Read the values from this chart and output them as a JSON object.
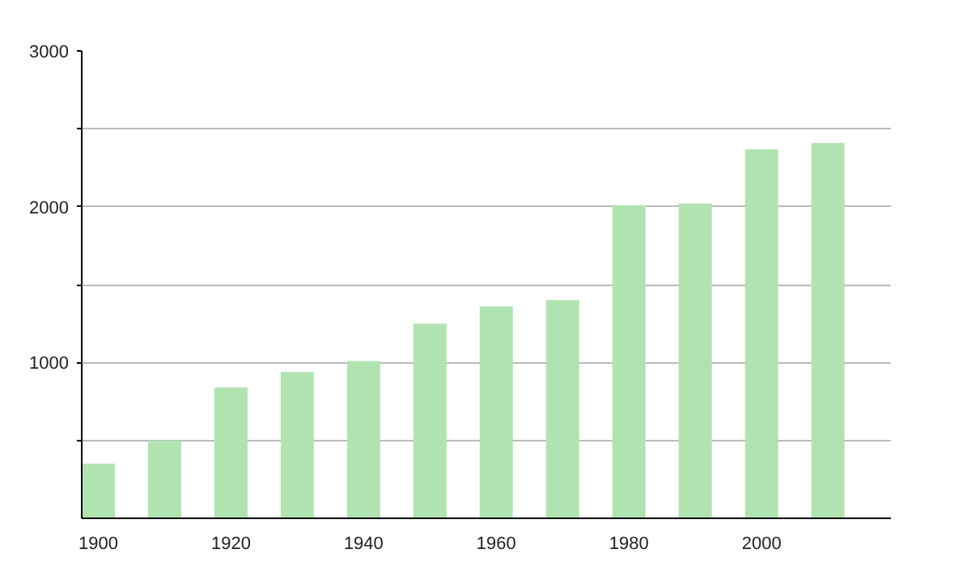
{
  "chart_data": {
    "type": "bar",
    "x": [
      1900,
      1910,
      1920,
      1930,
      1940,
      1950,
      1960,
      1970,
      1980,
      1990,
      2000,
      2010
    ],
    "values": [
      350,
      500,
      840,
      940,
      1010,
      1250,
      1360,
      1400,
      2010,
      2020,
      2370,
      2410
    ],
    "color": "#b1e3b1",
    "xlim": [
      1897.5,
      2019.5
    ],
    "xticks": [
      1900,
      1920,
      1940,
      1960,
      1980,
      2000
    ],
    "ylim": [
      0,
      3000
    ],
    "yticks": [
      {
        "value": 500,
        "label": null
      },
      1000,
      {
        "value": 1500,
        "label": null
      },
      2000,
      {
        "value": 2500,
        "label": null
      },
      3000
    ],
    "grid": "y"
  }
}
